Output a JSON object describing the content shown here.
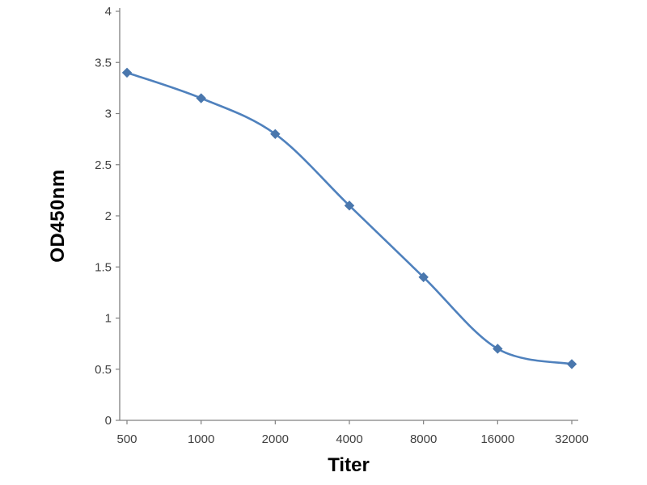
{
  "chart_data": {
    "type": "line",
    "title": "",
    "xlabel": "Titer",
    "ylabel": "OD450nm",
    "categories": [
      "500",
      "1000",
      "2000",
      "4000",
      "8000",
      "16000",
      "32000"
    ],
    "series": [
      {
        "name": "OD450nm",
        "values": [
          3.4,
          3.15,
          2.8,
          2.1,
          1.4,
          0.7,
          0.55
        ]
      }
    ],
    "ylim": [
      0,
      4
    ],
    "yticks": [
      "0",
      "0.5",
      "1",
      "1.5",
      "2",
      "2.5",
      "3",
      "3.5",
      "4"
    ],
    "grid": false,
    "legend_position": "none",
    "smooth": true,
    "marker": "diamond",
    "line_color": "#4f81bd",
    "marker_color": "#4a77ad",
    "axis_color": "#808080",
    "tick_label_color": "#404040"
  }
}
